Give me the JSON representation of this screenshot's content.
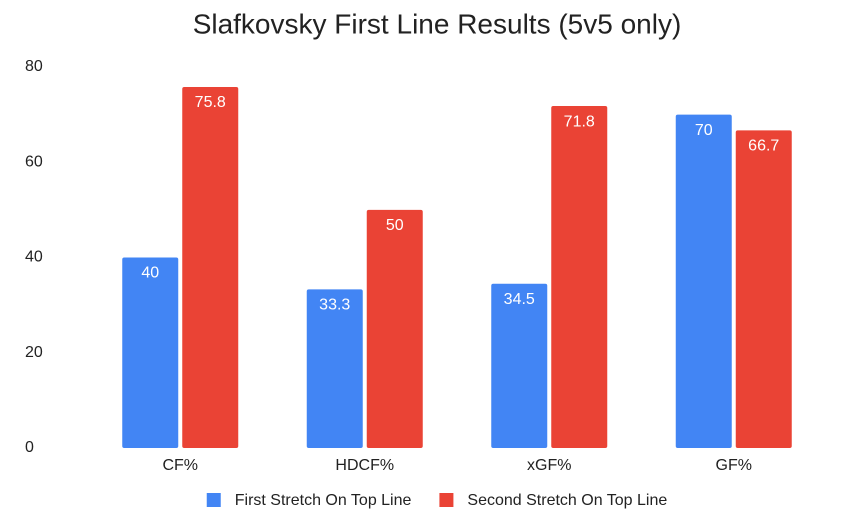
{
  "chart_data": {
    "type": "bar",
    "title": "Slafkovsky First Line Results (5v5 only)",
    "categories": [
      "CF%",
      "HDCF%",
      "xGF%",
      "GF%"
    ],
    "series": [
      {
        "name": "First Stretch On Top Line",
        "color": "#4285f4",
        "values": [
          40,
          33.3,
          34.5,
          70
        ]
      },
      {
        "name": "Second Stretch On Top Line",
        "color": "#ea4335",
        "values": [
          75.8,
          50,
          71.8,
          66.7
        ]
      }
    ],
    "ylim": [
      0,
      80
    ],
    "yticks": [
      0,
      20,
      40,
      60,
      80
    ],
    "grid": false,
    "legend": "bottom"
  }
}
